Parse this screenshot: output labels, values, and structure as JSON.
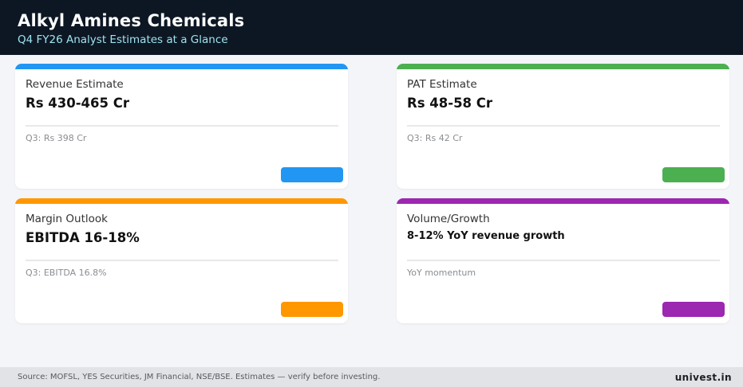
{
  "header": {
    "title": "Alkyl Amines Chemicals",
    "subtitle": "Q4 FY26 Analyst Estimates at a Glance"
  },
  "cards": [
    {
      "label": "Revenue Estimate",
      "value": "Rs 430-465 Cr",
      "note": "Q3: Rs 398 Cr",
      "accent": "#2196f3"
    },
    {
      "label": "PAT Estimate",
      "value": "Rs 48-58 Cr",
      "note": "Q3: Rs 42 Cr",
      "accent": "#4caf50"
    },
    {
      "label": "Margin Outlook",
      "value": "EBITDA 16-18%",
      "note": "Q3: EBITDA 16.8%",
      "accent": "#ff9800"
    },
    {
      "label": "Volume/Growth",
      "value": "8-12% YoY revenue growth",
      "note": "YoY momentum",
      "accent": "#9c27b0"
    }
  ],
  "footer": {
    "source": "Source: MOFSL, YES Securities, JM Financial, NSE/BSE. Estimates — verify before investing.",
    "brand": "univest.in"
  }
}
